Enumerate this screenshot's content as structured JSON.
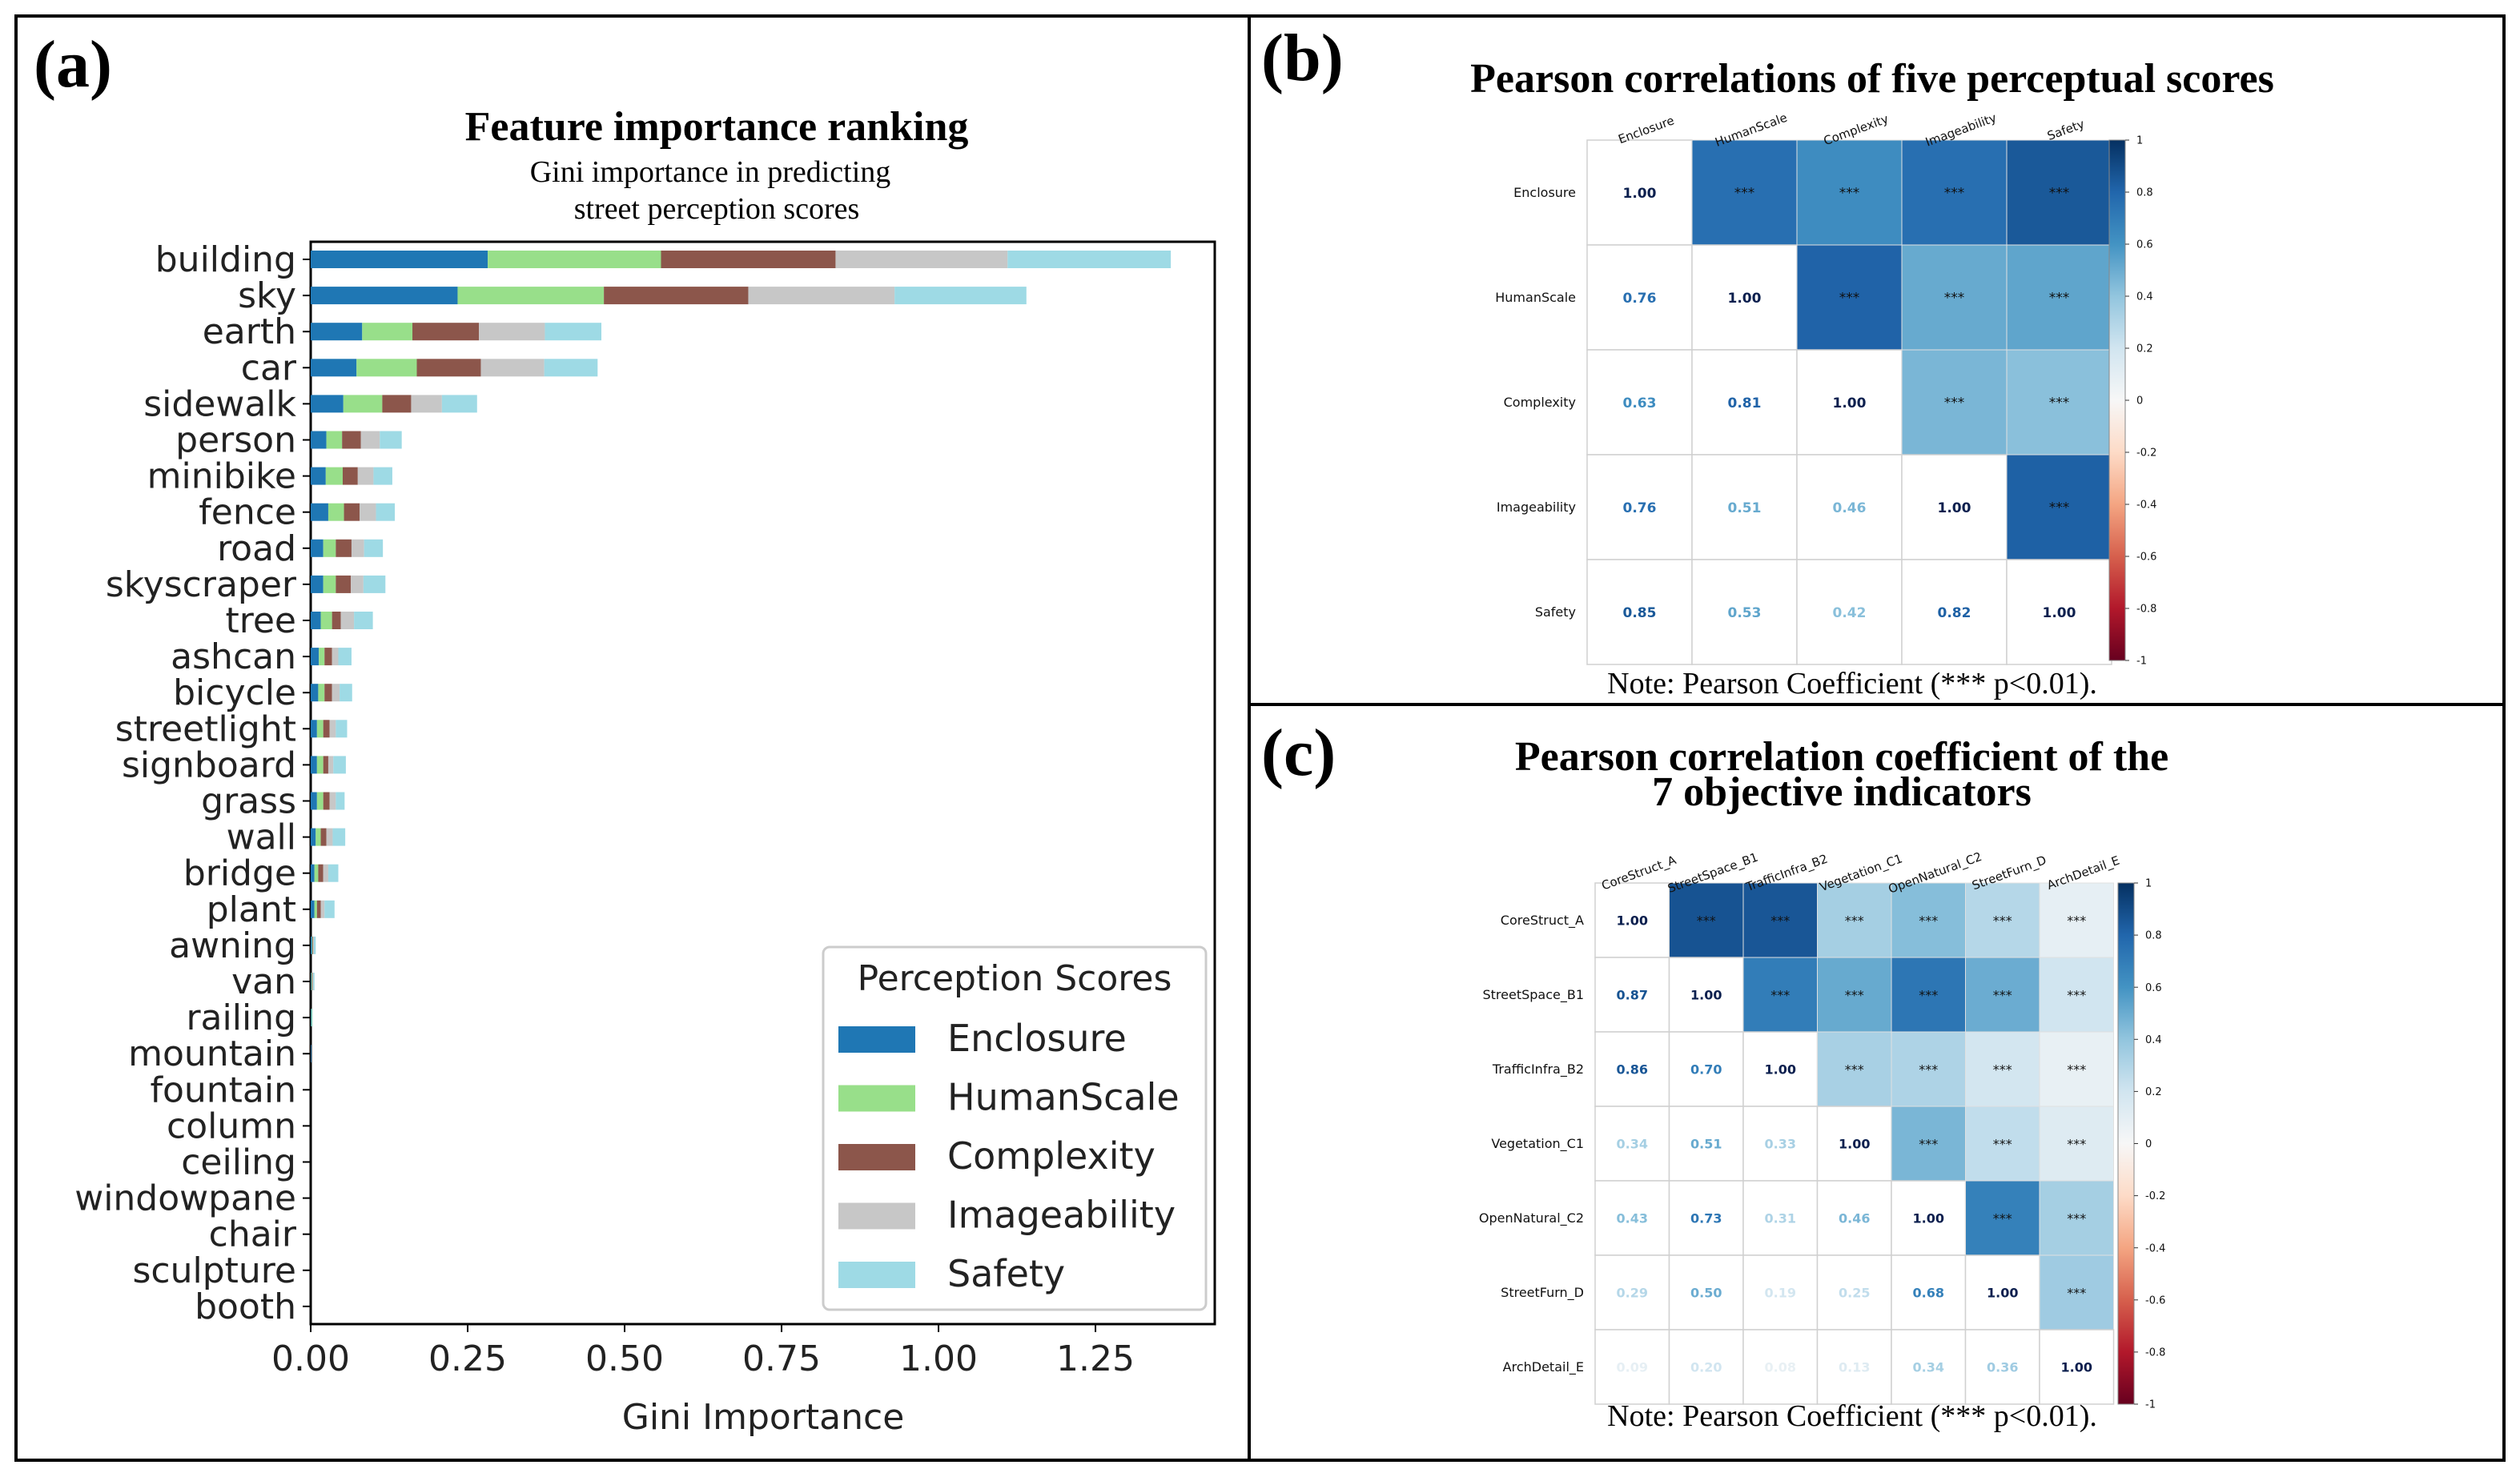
{
  "panel_labels": {
    "a": "(a)",
    "b": "(b)",
    "c": "(c)"
  },
  "colors": {
    "Enclosure": "#1f77b4",
    "HumanScale": "#98df8a",
    "Complexity": "#8c564b",
    "Imageability": "#c7c7c7",
    "Safety": "#9edae5"
  },
  "chart_data": [
    {
      "type": "bar",
      "orientation": "horizontal",
      "stacked": true,
      "title": "Feature importance ranking",
      "subtitle_lines": [
        "Gini importance in predicting",
        "street perception scores"
      ],
      "xlabel": "Gini Importance",
      "ylabel": "",
      "xlim": [
        0,
        1.44
      ],
      "xticks": [
        "0.00",
        "0.25",
        "0.50",
        "0.75",
        "1.00",
        "1.25"
      ],
      "legend_title": "Perception Scores",
      "legend_position": "bottom-right",
      "categories": [
        "building",
        "sky",
        "earth",
        "car",
        "sidewalk",
        "person",
        "minibike",
        "fence",
        "road",
        "skyscraper",
        "tree",
        "ashcan",
        "bicycle",
        "streetlight",
        "signboard",
        "grass",
        "wall",
        "bridge",
        "plant",
        "awning",
        "van",
        "railing",
        "mountain",
        "fountain",
        "column",
        "ceiling",
        "windowpane",
        "chair",
        "sculpture",
        "booth"
      ],
      "series": [
        {
          "name": "Enclosure",
          "values": [
            0.282,
            0.234,
            0.082,
            0.073,
            0.052,
            0.025,
            0.024,
            0.028,
            0.02,
            0.02,
            0.016,
            0.013,
            0.012,
            0.01,
            0.01,
            0.01,
            0.008,
            0.006,
            0.006,
            0.002,
            0.001,
            0.001,
            0.001,
            0,
            0,
            0,
            0,
            0,
            0,
            0
          ]
        },
        {
          "name": "HumanScale",
          "values": [
            0.276,
            0.233,
            0.08,
            0.096,
            0.062,
            0.025,
            0.027,
            0.025,
            0.02,
            0.02,
            0.018,
            0.009,
            0.01,
            0.01,
            0.01,
            0.01,
            0.008,
            0.006,
            0.004,
            0.001,
            0.001,
            0.001,
            0,
            0,
            0,
            0,
            0,
            0,
            0,
            0
          ]
        },
        {
          "name": "Complexity",
          "values": [
            0.278,
            0.23,
            0.106,
            0.102,
            0.046,
            0.03,
            0.024,
            0.025,
            0.025,
            0.024,
            0.014,
            0.012,
            0.012,
            0.01,
            0.008,
            0.01,
            0.009,
            0.008,
            0.006,
            0.001,
            0.001,
            0,
            0,
            0,
            0,
            0,
            0,
            0,
            0,
            0
          ]
        },
        {
          "name": "Imageability",
          "values": [
            0.274,
            0.233,
            0.105,
            0.101,
            0.049,
            0.03,
            0.025,
            0.026,
            0.02,
            0.02,
            0.021,
            0.01,
            0.012,
            0.01,
            0.008,
            0.01,
            0.01,
            0.008,
            0.006,
            0.001,
            0.001,
            0,
            0,
            0,
            0,
            0,
            0,
            0,
            0,
            0
          ]
        },
        {
          "name": "Safety",
          "values": [
            0.26,
            0.21,
            0.09,
            0.085,
            0.056,
            0.035,
            0.03,
            0.03,
            0.03,
            0.035,
            0.03,
            0.021,
            0.02,
            0.018,
            0.02,
            0.014,
            0.02,
            0.016,
            0.016,
            0.003,
            0.002,
            0.001,
            0,
            0,
            0,
            0,
            0,
            0,
            0,
            0
          ]
        }
      ]
    },
    {
      "type": "heatmap",
      "title": "Pearson correlations of five perceptual scores",
      "labels": [
        "Enclosure",
        "HumanScale",
        "Complexity",
        "Imageability",
        "Safety"
      ],
      "matrix": [
        [
          1.0,
          0.76,
          0.63,
          0.76,
          0.85
        ],
        [
          0.76,
          1.0,
          0.81,
          0.51,
          0.53
        ],
        [
          0.63,
          0.81,
          1.0,
          0.46,
          0.42
        ],
        [
          0.76,
          0.51,
          0.46,
          1.0,
          0.82
        ],
        [
          0.85,
          0.53,
          0.42,
          0.82,
          1.0
        ]
      ],
      "lower_text": [
        [
          "1.00"
        ],
        [
          "0.76",
          "1.00"
        ],
        [
          "0.63",
          "0.81",
          "1.00"
        ],
        [
          "0.76",
          "0.51",
          "0.46",
          "1.00"
        ],
        [
          "0.85",
          "0.53",
          "0.42",
          "0.82",
          "1.00"
        ]
      ],
      "significance_mark": "***",
      "colorbar_ticks": [
        "1",
        "0.8",
        "0.6",
        "0.4",
        "0.2",
        "0",
        "-0.2",
        "-0.4",
        "-0.6",
        "-0.8",
        "-1"
      ],
      "colorbar_range": [
        -1,
        1
      ],
      "note": "Note: Pearson Coefficient (*** p<0.01)."
    },
    {
      "type": "heatmap",
      "title_lines": [
        "Pearson correlation coefficient of the",
        "7 objective indicators"
      ],
      "labels": [
        "CoreStruct_A",
        "StreetSpace_B1",
        "TrafficInfra_B2",
        "Vegetation_C1",
        "OpenNatural_C2",
        "StreetFurn_D",
        "ArchDetail_E"
      ],
      "matrix": [
        [
          1.0,
          0.87,
          0.86,
          0.34,
          0.43,
          0.29,
          0.09
        ],
        [
          0.87,
          1.0,
          0.7,
          0.51,
          0.73,
          0.5,
          0.2
        ],
        [
          0.86,
          0.7,
          1.0,
          0.33,
          0.31,
          0.19,
          0.08
        ],
        [
          0.34,
          0.51,
          0.33,
          1.0,
          0.46,
          0.25,
          0.13
        ],
        [
          0.43,
          0.73,
          0.31,
          0.46,
          1.0,
          0.68,
          0.34
        ],
        [
          0.29,
          0.5,
          0.19,
          0.25,
          0.68,
          1.0,
          0.36
        ],
        [
          0.09,
          0.2,
          0.08,
          0.13,
          0.34,
          0.36,
          1.0
        ]
      ],
      "lower_text": [
        [
          "1.00"
        ],
        [
          "0.87",
          "1.00"
        ],
        [
          "0.86",
          "0.70",
          "1.00"
        ],
        [
          "0.34",
          "0.51",
          "0.33",
          "1.00"
        ],
        [
          "0.43",
          "0.73",
          "0.31",
          "0.46",
          "1.00"
        ],
        [
          "0.29",
          "0.50",
          "0.19",
          "0.25",
          "0.68",
          "1.00"
        ],
        [
          "0.09",
          "0.20",
          "0.08",
          "0.13",
          "0.34",
          "0.36",
          "1.00"
        ]
      ],
      "significance_mark": "***",
      "colorbar_ticks": [
        "1",
        "0.8",
        "0.6",
        "0.4",
        "0.2",
        "0",
        "-0.2",
        "-0.4",
        "-0.6",
        "-0.8",
        "-1"
      ],
      "colorbar_range": [
        -1,
        1
      ],
      "note": "Note: Pearson Coefficient (*** p<0.01)."
    }
  ]
}
